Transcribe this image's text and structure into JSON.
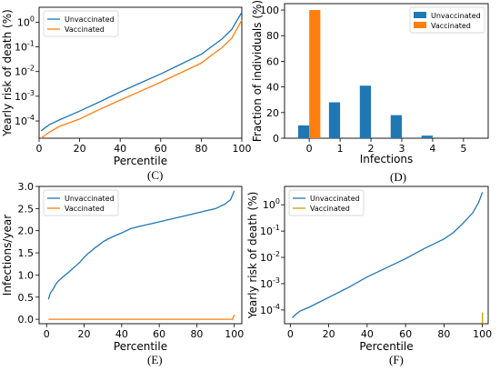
{
  "colors": {
    "unvaccinated": "#1f77b4",
    "vaccinated": "#ff7f0e",
    "vaccinated_bottom": "#c8a000"
  },
  "chart_data": [
    {
      "panel": "(C)",
      "type": "line",
      "xlabel": "Percentile",
      "ylabel": "Yearly risk of death (%)",
      "xlim": [
        0,
        100
      ],
      "yscale": "log",
      "ylim": [
        2e-05,
        4
      ],
      "xticks": [
        "0",
        "20",
        "40",
        "60",
        "80",
        "100"
      ],
      "yticks": [
        {
          "label": "10",
          "exp": "-4",
          "value": 0.0001
        },
        {
          "label": "10",
          "exp": "-3",
          "value": 0.001
        },
        {
          "label": "10",
          "exp": "-2",
          "value": 0.01
        },
        {
          "label": "10",
          "exp": "-1",
          "value": 0.1
        },
        {
          "label": "10",
          "exp": "0",
          "value": 1
        }
      ],
      "legend": "top-left",
      "series": [
        {
          "name": "Unvaccinated",
          "color": "#1f77b4",
          "x": [
            1,
            5,
            10,
            20,
            30,
            40,
            50,
            60,
            70,
            80,
            85,
            90,
            95,
            100
          ],
          "y": [
            4e-05,
            7e-05,
            0.00011,
            0.00025,
            0.0006,
            0.0015,
            0.0035,
            0.008,
            0.02,
            0.05,
            0.1,
            0.2,
            0.5,
            2.5
          ]
        },
        {
          "name": "Vaccinated",
          "color": "#ff7f0e",
          "x": [
            1,
            5,
            10,
            20,
            30,
            40,
            50,
            60,
            70,
            80,
            85,
            90,
            95,
            100
          ],
          "y": [
            2e-05,
            3.5e-05,
            6e-05,
            0.00012,
            0.0003,
            0.0007,
            0.0016,
            0.0037,
            0.009,
            0.022,
            0.045,
            0.09,
            0.22,
            1.2
          ]
        }
      ]
    },
    {
      "panel": "(D)",
      "type": "bar",
      "xlabel": "Infections",
      "ylabel": "Fraction of individuals (%)",
      "categories": [
        "0",
        "1",
        "2",
        "3",
        "4",
        "5"
      ],
      "ylim": [
        0,
        105
      ],
      "yticks": [
        "0",
        "20",
        "40",
        "60",
        "80",
        "100"
      ],
      "legend": "top-right",
      "series": [
        {
          "name": "Unvaccinated",
          "color": "#1f77b4",
          "values": [
            10,
            28,
            41,
            18,
            2,
            0
          ]
        },
        {
          "name": "Vaccinated",
          "color": "#ff7f0e",
          "values": [
            100,
            0,
            0,
            0,
            0,
            0
          ]
        }
      ]
    },
    {
      "panel": "(E)",
      "type": "line",
      "xlabel": "Percentile",
      "ylabel": "Infections/year",
      "xlim": [
        -4,
        104
      ],
      "ylim": [
        -0.1,
        3.0
      ],
      "xticks": [
        "0",
        "20",
        "40",
        "60",
        "80",
        "100"
      ],
      "yticks": [
        "0.0",
        "0.5",
        "1.0",
        "1.5",
        "2.0",
        "2.5",
        "3.0"
      ],
      "legend": "top-left",
      "series": [
        {
          "name": "Unvaccinated",
          "color": "#1f77b4",
          "x": [
            1,
            2,
            3,
            4,
            5,
            6,
            8,
            10,
            12,
            14,
            16,
            18,
            20,
            22,
            24,
            26,
            28,
            30,
            33,
            36,
            40,
            45,
            50,
            55,
            60,
            65,
            70,
            75,
            80,
            85,
            90,
            95,
            98,
            100
          ],
          "y": [
            0.45,
            0.6,
            0.65,
            0.72,
            0.8,
            0.85,
            0.93,
            1.0,
            1.07,
            1.15,
            1.22,
            1.3,
            1.4,
            1.48,
            1.55,
            1.62,
            1.68,
            1.75,
            1.82,
            1.88,
            1.95,
            2.05,
            2.1,
            2.15,
            2.2,
            2.25,
            2.3,
            2.35,
            2.4,
            2.45,
            2.5,
            2.6,
            2.7,
            2.9
          ]
        },
        {
          "name": "Vaccinated",
          "color": "#ff7f0e",
          "x": [
            1,
            20,
            40,
            60,
            80,
            99,
            100
          ],
          "y": [
            0,
            0,
            0,
            0,
            0,
            0,
            0.1
          ]
        }
      ]
    },
    {
      "panel": "(F)",
      "type": "line",
      "xlabel": "Percentile",
      "ylabel": "Yearly risk of death (%)",
      "xlim": [
        -3,
        103
      ],
      "yscale": "log",
      "ylim": [
        3e-05,
        5
      ],
      "xticks": [
        "0",
        "20",
        "40",
        "60",
        "80",
        "100"
      ],
      "yticks": [
        {
          "label": "10",
          "exp": "-4",
          "value": 0.0001
        },
        {
          "label": "10",
          "exp": "-3",
          "value": 0.001
        },
        {
          "label": "10",
          "exp": "-2",
          "value": 0.01
        },
        {
          "label": "10",
          "exp": "-1",
          "value": 0.1
        },
        {
          "label": "10",
          "exp": "0",
          "value": 1
        }
      ],
      "legend": "top-left",
      "series": [
        {
          "name": "Unvaccinated",
          "color": "#1f77b4",
          "x": [
            1,
            3,
            5,
            10,
            20,
            30,
            40,
            50,
            60,
            70,
            80,
            85,
            90,
            95,
            98,
            100
          ],
          "y": [
            5e-05,
            7e-05,
            9e-05,
            0.00013,
            0.0003,
            0.0007,
            0.0018,
            0.004,
            0.009,
            0.022,
            0.05,
            0.09,
            0.2,
            0.5,
            1.2,
            3.0
          ]
        },
        {
          "name": "Vaccinated",
          "color": "#c8a000",
          "x": [
            100,
            100
          ],
          "y": [
            3e-05,
            8e-05
          ]
        }
      ]
    }
  ]
}
